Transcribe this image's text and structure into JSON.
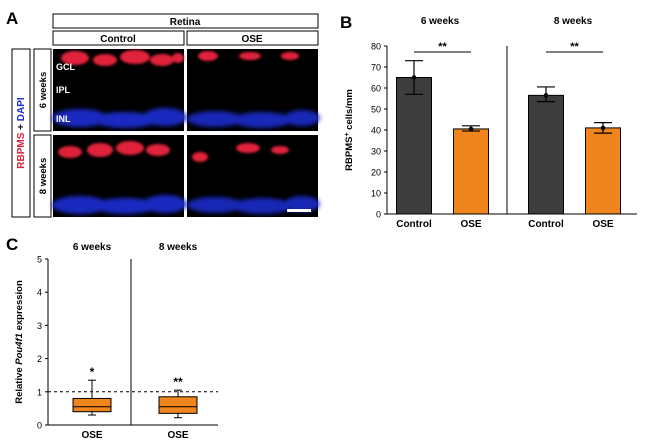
{
  "panel_a": {
    "letter": "A",
    "header": "Retina",
    "columns": [
      "Control",
      "OSE"
    ],
    "rows": [
      "6 weeks",
      "8 weeks"
    ],
    "side_label_red": "RBPMS",
    "side_label_plus": " + ",
    "side_label_blue": "DAPI",
    "layers": [
      "GCL",
      "IPL",
      "INL"
    ],
    "colors": {
      "nuclei": "#1a2fd6",
      "rbpms": "#e0243a",
      "background": "#000000"
    }
  },
  "chart_data": [
    {
      "type": "bar",
      "panel": "B",
      "ylabel_main": "RBPMS",
      "ylabel_sup": "+",
      "ylabel_rest": " cells/mm",
      "ylim": [
        0,
        80
      ],
      "yticks": [
        0,
        10,
        20,
        30,
        40,
        50,
        60,
        70,
        80
      ],
      "groups": [
        {
          "title": "6 weeks",
          "significance": "**",
          "bars": [
            {
              "category": "Control",
              "value": 65,
              "err_low": 57,
              "err_high": 73,
              "color": "#3d3d3d"
            },
            {
              "category": "OSE",
              "value": 40.5,
              "err_low": 39.5,
              "err_high": 42,
              "color": "#f0851e"
            }
          ]
        },
        {
          "title": "8 weeks",
          "significance": "**",
          "bars": [
            {
              "category": "Control",
              "value": 56.5,
              "err_low": 53.5,
              "err_high": 60.5,
              "color": "#3d3d3d"
            },
            {
              "category": "OSE",
              "value": 41,
              "err_low": 38.5,
              "err_high": 43.5,
              "color": "#f0851e"
            }
          ]
        }
      ]
    },
    {
      "type": "box",
      "panel": "C",
      "ylabel_pre": "Relative ",
      "ylabel_italic": "Pou4f1",
      "ylabel_post": " expression",
      "ylim": [
        0,
        5
      ],
      "yticks": [
        0,
        1,
        2,
        3,
        4,
        5
      ],
      "reference_line": 1,
      "groups": [
        {
          "title": "6 weeks",
          "category": "OSE",
          "significance": "*",
          "whisker_low": 0.3,
          "q1": 0.4,
          "median": 0.55,
          "q3": 0.8,
          "whisker_high": 1.35,
          "color": "#f0851e"
        },
        {
          "title": "8 weeks",
          "category": "OSE",
          "significance": "**",
          "whisker_low": 0.22,
          "q1": 0.35,
          "median": 0.55,
          "q3": 0.85,
          "whisker_high": 1.05,
          "color": "#f0851e"
        }
      ]
    }
  ]
}
